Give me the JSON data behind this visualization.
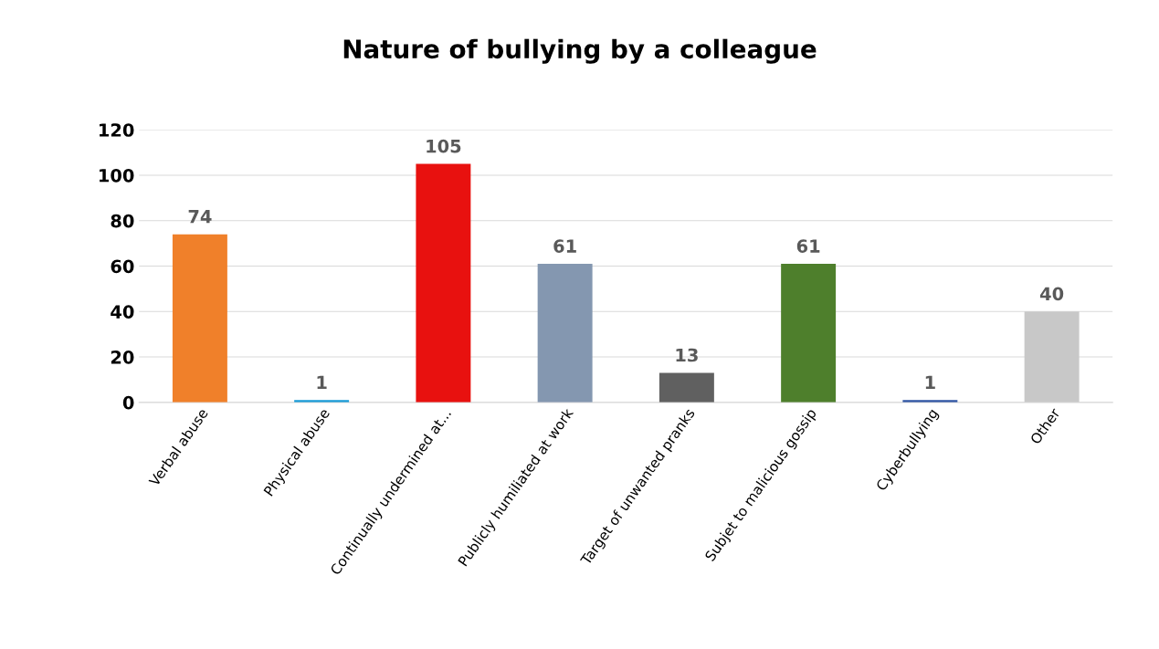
{
  "chart_data": {
    "type": "bar",
    "title": "Nature of bullying by a colleague",
    "categories": [
      "Verbal abuse",
      "Physical abuse",
      "Continually undermined at...",
      "Publicly humiliated at work",
      "Target of unwanted pranks",
      "Subjet to malicious gossip",
      "Cyberbullying",
      "Other"
    ],
    "values": [
      74,
      1,
      105,
      61,
      13,
      61,
      1,
      40
    ],
    "colors": [
      "#f0802a",
      "#1a9bd7",
      "#e8110f",
      "#8497b0",
      "#606060",
      "#4e7f2c",
      "#2f55a4",
      "#c8c8c8"
    ],
    "ylim": [
      0,
      120
    ],
    "yticks": [
      0,
      20,
      40,
      60,
      80,
      100,
      120
    ],
    "grid": "y",
    "data_labels": true
  }
}
